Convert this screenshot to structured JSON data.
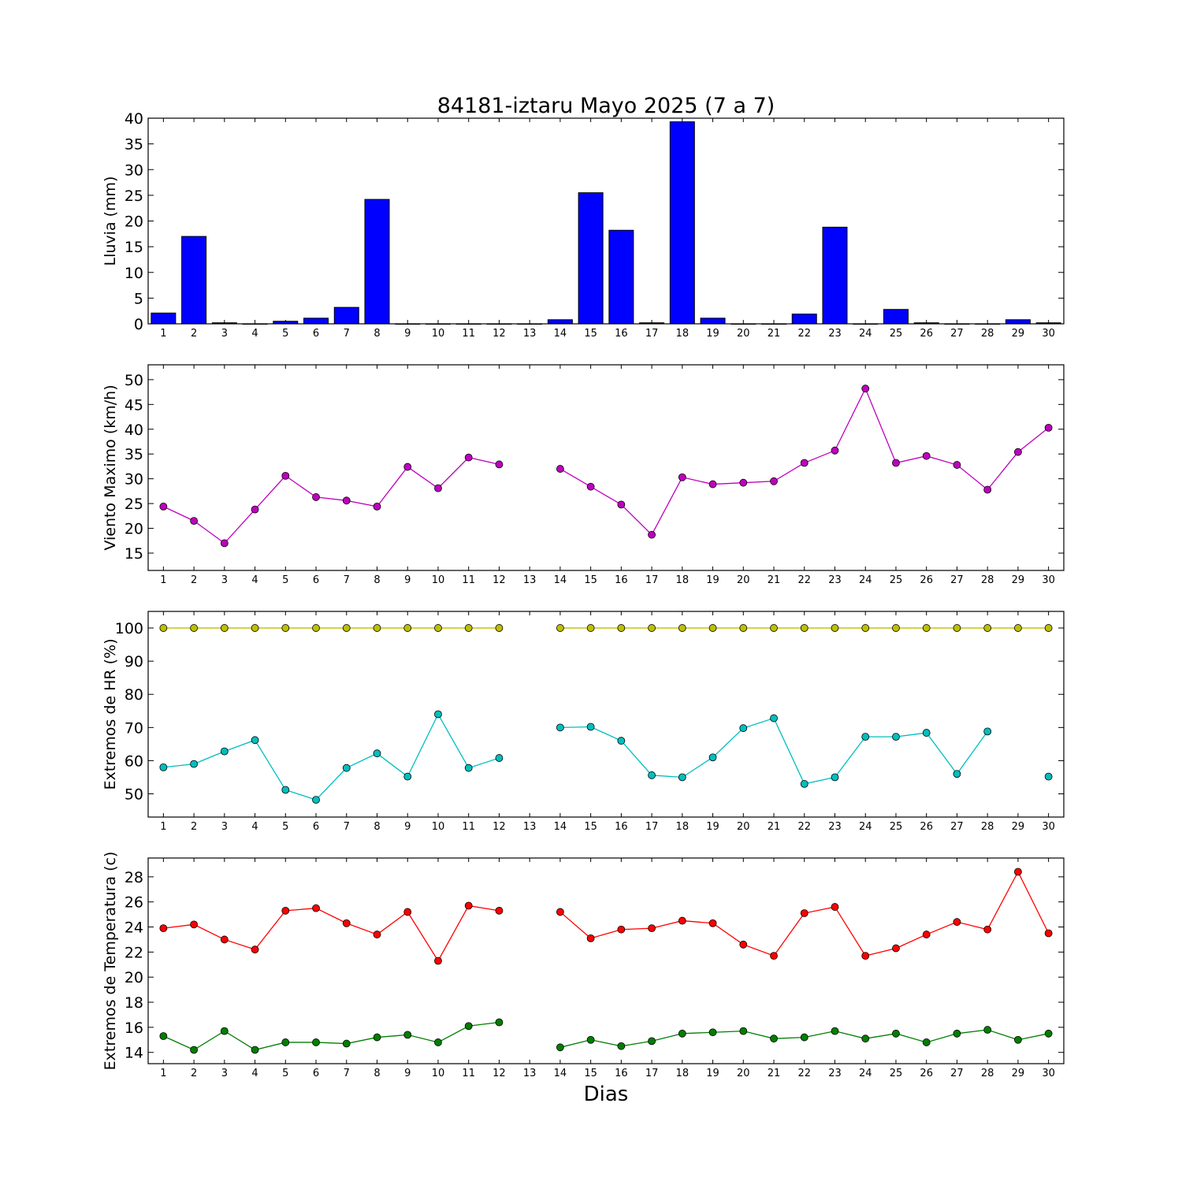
{
  "title": "84181-iztaru Mayo 2025  (7 a 7)",
  "xlabel": "Dias",
  "chart_data": [
    {
      "type": "bar",
      "ylabel": "Lluvia (mm)",
      "ylim": [
        0,
        40
      ],
      "yticks": [
        0,
        5,
        10,
        15,
        20,
        25,
        30,
        35,
        40
      ],
      "categories": [
        1,
        2,
        3,
        4,
        5,
        6,
        7,
        8,
        9,
        10,
        11,
        12,
        13,
        14,
        15,
        16,
        17,
        18,
        19,
        20,
        21,
        22,
        23,
        24,
        25,
        26,
        27,
        28,
        29,
        30
      ],
      "colors": {
        "bar": "#0000ff"
      },
      "values": [
        2.1,
        17.0,
        0.2,
        0.0,
        0.5,
        1.1,
        3.2,
        24.2,
        0.0,
        0.0,
        0.0,
        0.0,
        0.0,
        0.8,
        25.5,
        18.2,
        0.2,
        39.3,
        1.1,
        0.0,
        0.0,
        1.9,
        18.8,
        0.0,
        2.8,
        0.2,
        0.0,
        0.0,
        0.8,
        0.2
      ]
    },
    {
      "type": "line",
      "ylabel": "Viento Maximo (km/h)",
      "ylim": [
        11.5,
        53
      ],
      "yticks": [
        15,
        20,
        25,
        30,
        35,
        40,
        45,
        50
      ],
      "x": [
        1,
        2,
        3,
        4,
        5,
        6,
        7,
        8,
        9,
        10,
        11,
        12,
        13,
        14,
        15,
        16,
        17,
        18,
        19,
        20,
        21,
        22,
        23,
        24,
        25,
        26,
        27,
        28,
        29,
        30
      ],
      "series": [
        {
          "color": "#bf00bf",
          "values": [
            24.4,
            21.5,
            17.0,
            23.8,
            30.6,
            26.3,
            25.6,
            24.4,
            32.4,
            28.1,
            34.3,
            32.9,
            null,
            32.0,
            28.4,
            24.8,
            18.7,
            30.3,
            28.9,
            29.2,
            29.5,
            33.2,
            35.7,
            48.2,
            33.2,
            34.6,
            32.8,
            27.8,
            35.4,
            40.3
          ]
        }
      ]
    },
    {
      "type": "line",
      "ylabel": "Extremos de HR (%)",
      "ylim": [
        43,
        105
      ],
      "yticks": [
        50,
        60,
        70,
        80,
        90,
        100
      ],
      "x": [
        1,
        2,
        3,
        4,
        5,
        6,
        7,
        8,
        9,
        10,
        11,
        12,
        13,
        14,
        15,
        16,
        17,
        18,
        19,
        20,
        21,
        22,
        23,
        24,
        25,
        26,
        27,
        28,
        29,
        30
      ],
      "series": [
        {
          "color": "#bfbf00",
          "values": [
            100,
            100,
            100,
            100,
            100,
            100,
            100,
            100,
            100,
            100,
            100,
            100,
            null,
            100,
            100,
            100,
            100,
            100,
            100,
            100,
            100,
            100,
            100,
            100,
            100,
            100,
            100,
            100,
            100,
            100
          ]
        },
        {
          "color": "#00bfbf",
          "values": [
            58,
            59,
            62.8,
            66.2,
            51.2,
            48.2,
            57.8,
            62.2,
            55.2,
            74,
            57.8,
            60.8,
            null,
            70,
            70.2,
            66,
            55.6,
            55,
            61,
            69.8,
            72.8,
            53,
            55,
            67.2,
            67.2,
            68.4,
            56,
            68.8,
            null,
            55.2
          ]
        }
      ]
    },
    {
      "type": "line",
      "ylabel": "Extremos de Temperatura (c)",
      "ylim": [
        13.1,
        29.5
      ],
      "yticks": [
        14,
        16,
        18,
        20,
        22,
        24,
        26,
        28
      ],
      "x": [
        1,
        2,
        3,
        4,
        5,
        6,
        7,
        8,
        9,
        10,
        11,
        12,
        13,
        14,
        15,
        16,
        17,
        18,
        19,
        20,
        21,
        22,
        23,
        24,
        25,
        26,
        27,
        28,
        29,
        30
      ],
      "series": [
        {
          "color": "#ff0000",
          "values": [
            23.9,
            24.2,
            23.0,
            22.2,
            25.3,
            25.5,
            24.3,
            23.4,
            25.2,
            21.3,
            25.7,
            25.3,
            null,
            25.2,
            23.1,
            23.8,
            23.9,
            24.5,
            24.3,
            22.6,
            21.7,
            25.1,
            25.6,
            21.7,
            22.3,
            23.4,
            24.4,
            23.8,
            28.4,
            23.5
          ]
        },
        {
          "color": "#007f00",
          "values": [
            15.3,
            14.2,
            15.7,
            14.2,
            14.8,
            14.8,
            14.7,
            15.2,
            15.4,
            14.8,
            16.1,
            16.4,
            null,
            14.4,
            15.0,
            14.5,
            14.9,
            15.5,
            15.6,
            15.7,
            15.1,
            15.2,
            15.7,
            15.1,
            15.5,
            14.8,
            15.5,
            15.8,
            15.0,
            15.5
          ]
        }
      ]
    }
  ]
}
